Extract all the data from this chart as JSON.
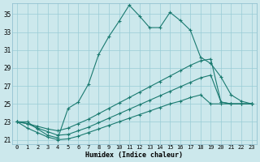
{
  "xlabel": "Humidex (Indice chaleur)",
  "background_color": "#cce8ec",
  "grid_color": "#99ccd6",
  "line_color": "#1a7a70",
  "xlim_min": -0.5,
  "xlim_max": 23.5,
  "ylim_min": 20.5,
  "ylim_max": 36.2,
  "yticks": [
    21,
    23,
    25,
    27,
    29,
    31,
    33,
    35
  ],
  "xticks": [
    0,
    1,
    2,
    3,
    4,
    5,
    6,
    7,
    8,
    9,
    10,
    11,
    12,
    13,
    14,
    15,
    16,
    17,
    18,
    19,
    20,
    21,
    22,
    23
  ],
  "curves": [
    {
      "x": [
        0,
        1,
        2,
        3,
        4,
        5,
        6,
        7,
        8,
        9,
        10,
        11,
        12,
        13,
        14,
        15,
        16,
        17,
        18,
        19,
        20,
        21,
        22,
        23
      ],
      "y": [
        23.0,
        23.0,
        22.2,
        21.5,
        21.2,
        24.5,
        25.2,
        27.2,
        30.5,
        32.5,
        34.2,
        36.0,
        34.8,
        33.5,
        33.5,
        35.2,
        34.3,
        33.2,
        30.2,
        29.5,
        28.0,
        26.0,
        25.3,
        25.0
      ]
    },
    {
      "x": [
        0,
        1,
        2,
        3,
        4,
        5,
        6,
        7,
        8,
        9,
        10,
        11,
        12,
        13,
        14,
        15,
        16,
        17,
        18,
        19,
        20,
        21,
        22,
        23
      ],
      "y": [
        23.0,
        22.8,
        22.5,
        22.2,
        22.0,
        22.3,
        22.8,
        23.3,
        23.9,
        24.5,
        25.1,
        25.7,
        26.3,
        26.9,
        27.5,
        28.1,
        28.7,
        29.3,
        29.8,
        30.0,
        25.2,
        25.0,
        25.0,
        25.0
      ]
    },
    {
      "x": [
        0,
        1,
        2,
        3,
        4,
        5,
        6,
        7,
        8,
        9,
        10,
        11,
        12,
        13,
        14,
        15,
        16,
        17,
        18,
        19,
        20,
        21,
        22,
        23
      ],
      "y": [
        23.0,
        22.8,
        22.3,
        21.9,
        21.5,
        21.6,
        22.0,
        22.4,
        22.9,
        23.4,
        23.9,
        24.4,
        24.9,
        25.4,
        25.9,
        26.4,
        26.9,
        27.4,
        27.9,
        28.2,
        25.2,
        25.0,
        25.0,
        25.0
      ]
    },
    {
      "x": [
        0,
        1,
        2,
        3,
        4,
        5,
        6,
        7,
        8,
        9,
        10,
        11,
        12,
        13,
        14,
        15,
        16,
        17,
        18,
        19,
        20,
        21,
        22,
        23
      ],
      "y": [
        23.0,
        22.3,
        21.8,
        21.3,
        21.0,
        21.1,
        21.4,
        21.8,
        22.2,
        22.6,
        23.0,
        23.4,
        23.8,
        24.2,
        24.6,
        25.0,
        25.3,
        25.7,
        26.0,
        25.0,
        25.0,
        25.0,
        25.0,
        25.0
      ]
    }
  ]
}
